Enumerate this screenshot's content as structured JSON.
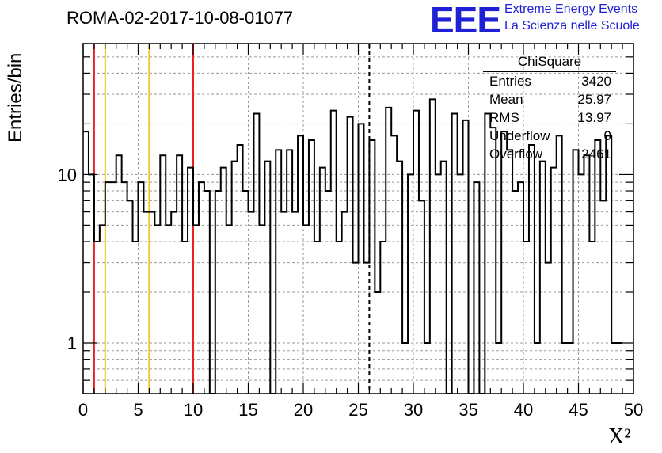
{
  "title": "ROMA-02-2017-10-08-01077",
  "logo": {
    "text": "EEE",
    "line1": "Extreme Energy Events",
    "line2": "La Scienza nelle Scuole",
    "color": "#1f1fd6"
  },
  "stats": {
    "name": "ChiSquare",
    "rows": [
      {
        "key": "Entries",
        "value": "3420"
      },
      {
        "key": "Mean",
        "value": "25.97"
      },
      {
        "key": "RMS",
        "value": "13.97"
      },
      {
        "key": "Underflow",
        "value": "0"
      },
      {
        "key": "Overflow",
        "value": "2461"
      }
    ]
  },
  "chart_data": {
    "type": "histogram",
    "xlabel": "X²",
    "ylabel": "Entries/bin",
    "xlim": [
      0,
      50
    ],
    "ylim": [
      0.5,
      60
    ],
    "y_scale": "log",
    "bin_width": 0.5,
    "x_ticks": [
      "0",
      "5",
      "10",
      "15",
      "20",
      "25",
      "30",
      "35",
      "40",
      "45",
      "50"
    ],
    "y_ticks": [
      {
        "value": 1,
        "label": "1"
      },
      {
        "value": 10,
        "label": "10"
      }
    ],
    "grid": true,
    "values": [
      18,
      10,
      4,
      5,
      9,
      9,
      13,
      9,
      7,
      4,
      9,
      6,
      6,
      5,
      13,
      5,
      6,
      13,
      4,
      11,
      5,
      9,
      8,
      0,
      8,
      11,
      5,
      12,
      15,
      8,
      6,
      23,
      5,
      12,
      0,
      14,
      6,
      14,
      6,
      17,
      5,
      16,
      4,
      11,
      8,
      24,
      4,
      6,
      22,
      3,
      20,
      3,
      16,
      2,
      4,
      25,
      17,
      12,
      1,
      10,
      24,
      7,
      1,
      28,
      10,
      12,
      0,
      23,
      10,
      21,
      0,
      9,
      0,
      23,
      19,
      1,
      18,
      14,
      8,
      9,
      4,
      15,
      1,
      12,
      3,
      11,
      17,
      1,
      1,
      14,
      10,
      13,
      4,
      16,
      7,
      17,
      1,
      1
    ],
    "line_color": "#000000",
    "reference_lines": [
      {
        "x": 1,
        "color": "#e8231f",
        "style": "solid"
      },
      {
        "x": 2,
        "color": "#f2c21a",
        "style": "solid"
      },
      {
        "x": 6,
        "color": "#f2c21a",
        "style": "solid"
      },
      {
        "x": 10,
        "color": "#e8231f",
        "style": "solid"
      },
      {
        "x": 26,
        "color": "#000000",
        "style": "dashed"
      }
    ]
  }
}
